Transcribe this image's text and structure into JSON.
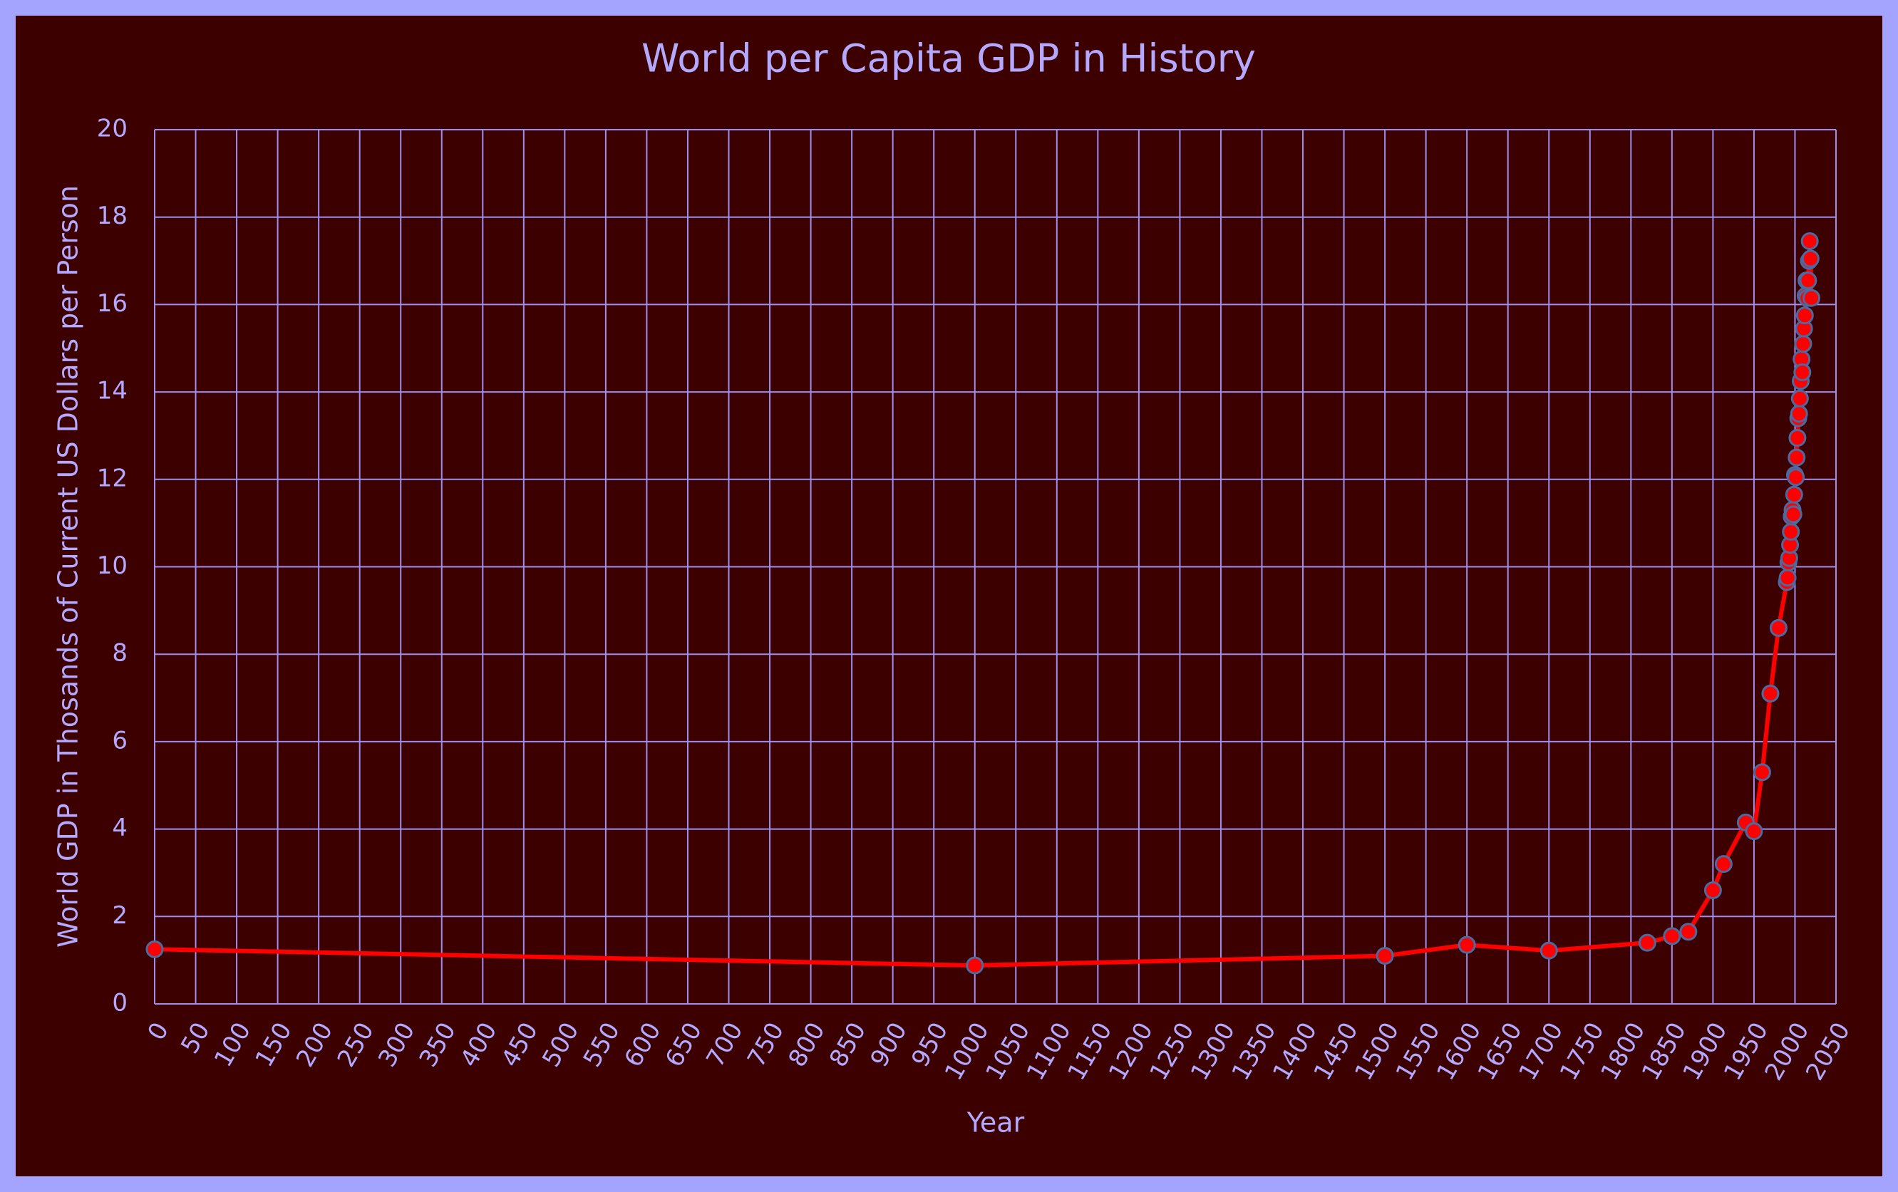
{
  "chart_data": {
    "type": "line",
    "title": "World per Capita GDP in History",
    "x_label": "Year",
    "y_label": "World GDP  in Thosands of Current US  Dollars per Person",
    "x": [
      0,
      1000,
      1500,
      1600,
      1700,
      1820,
      1850,
      1870,
      1900,
      1913,
      1940,
      1950,
      1960,
      1970,
      1980,
      1990,
      1991,
      1992,
      1993,
      1994,
      1995,
      1996,
      1997,
      1998,
      1999,
      2000,
      2001,
      2002,
      2003,
      2004,
      2005,
      2006,
      2007,
      2008,
      2009,
      2010,
      2011,
      2012,
      2013,
      2014,
      2015,
      2016,
      2017,
      2018,
      2019,
      2020
    ],
    "values": [
      1.25,
      0.88,
      1.1,
      1.35,
      1.22,
      1.4,
      1.55,
      1.65,
      2.6,
      3.2,
      4.15,
      3.95,
      5.3,
      7.1,
      8.6,
      9.65,
      9.75,
      10.1,
      10.2,
      10.5,
      10.8,
      11.15,
      11.3,
      11.2,
      11.65,
      12.1,
      12.05,
      12.5,
      12.95,
      13.4,
      13.5,
      13.85,
      14.25,
      14.75,
      14.45,
      15.1,
      15.45,
      15.75,
      16.2,
      16.55,
      16.15,
      16.55,
      17.0,
      17.45,
      17.05,
      16.15
    ],
    "color": "#ff0000",
    "marker_edge_color": "#4a6aa0",
    "xlim": [
      0,
      2050
    ],
    "xticks": [
      0,
      50,
      100,
      150,
      200,
      250,
      300,
      350,
      400,
      450,
      500,
      550,
      600,
      650,
      700,
      750,
      800,
      850,
      900,
      950,
      1000,
      1050,
      1100,
      1150,
      1200,
      1250,
      1300,
      1350,
      1400,
      1450,
      1500,
      1550,
      1600,
      1650,
      1700,
      1750,
      1800,
      1850,
      1900,
      1950,
      2000,
      2050
    ],
    "ylim": [
      0,
      20
    ],
    "yticks": [
      0,
      2,
      4,
      6,
      8,
      10,
      12,
      14,
      16,
      18,
      20
    ],
    "grid": true
  }
}
